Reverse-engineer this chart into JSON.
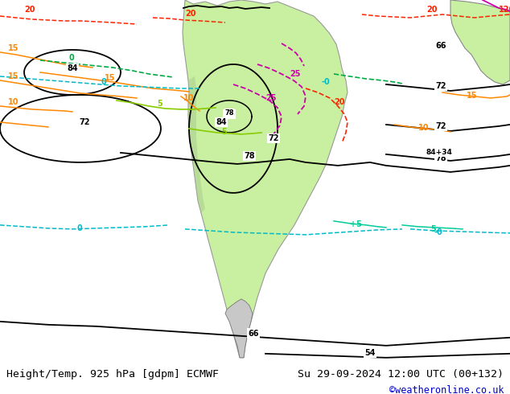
{
  "title_left": "Height/Temp. 925 hPa [gdpm] ECMWF",
  "title_right": "Su 29-09-2024 12:00 UTC (00+132)",
  "credit": "©weatheronline.co.uk",
  "ocean_color": "#e8e8e8",
  "land_green_color": "#c8f0a0",
  "land_gray_color": "#c8c8c8",
  "bottom_bar_color": "#ffffff",
  "fig_width": 6.34,
  "fig_height": 4.9,
  "dpi": 100,
  "title_fontsize": 9.5,
  "credit_fontsize": 8.5,
  "credit_color": "#0000cc",
  "black_contour_color": "#000000",
  "temp_red_color": "#ff2200",
  "temp_orange_color": "#ff8800",
  "temp_magenta_color": "#cc00aa",
  "temp_green_color": "#88cc00",
  "temp_cyan_color": "#00bbcc",
  "temp_teal_color": "#00cc99"
}
